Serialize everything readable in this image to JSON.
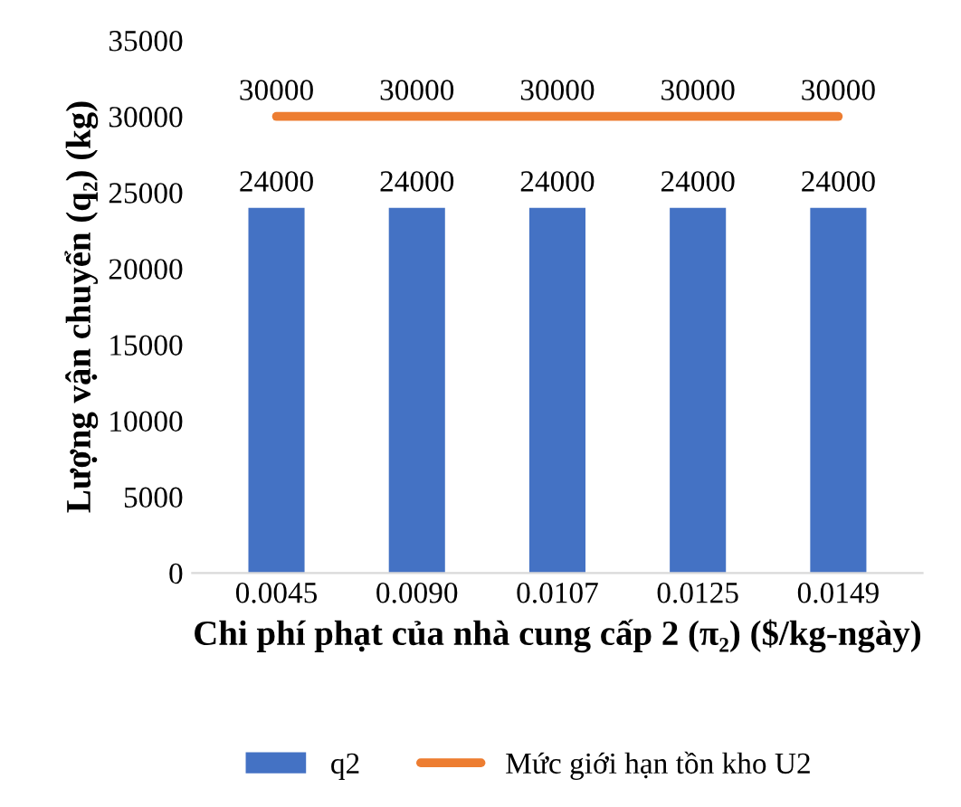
{
  "chart_data": {
    "type": "bar",
    "xlabel": "Chi phí phạt của nhà cung cấp 2 (π₂) ($/kg-ngày)",
    "ylabel": "Lượng vận chuyển (q₂) (kg)",
    "categories": [
      "0.0045",
      "0.0090",
      "0.0107",
      "0.0125",
      "0.0149"
    ],
    "series": [
      {
        "name": "q2",
        "color": "#4472c4",
        "values": [
          24000,
          24000,
          24000,
          24000,
          24000
        ]
      },
      {
        "name": "Mức giới hạn tồn kho U2",
        "type": "line",
        "color": "#ed7d31",
        "values": [
          30000,
          30000,
          30000,
          30000,
          30000
        ]
      }
    ],
    "ylim": [
      0,
      35000
    ],
    "yticks": [
      0,
      5000,
      10000,
      15000,
      20000,
      25000,
      30000,
      35000
    ],
    "data_labels": true,
    "legend": "bottom",
    "grid": false
  }
}
